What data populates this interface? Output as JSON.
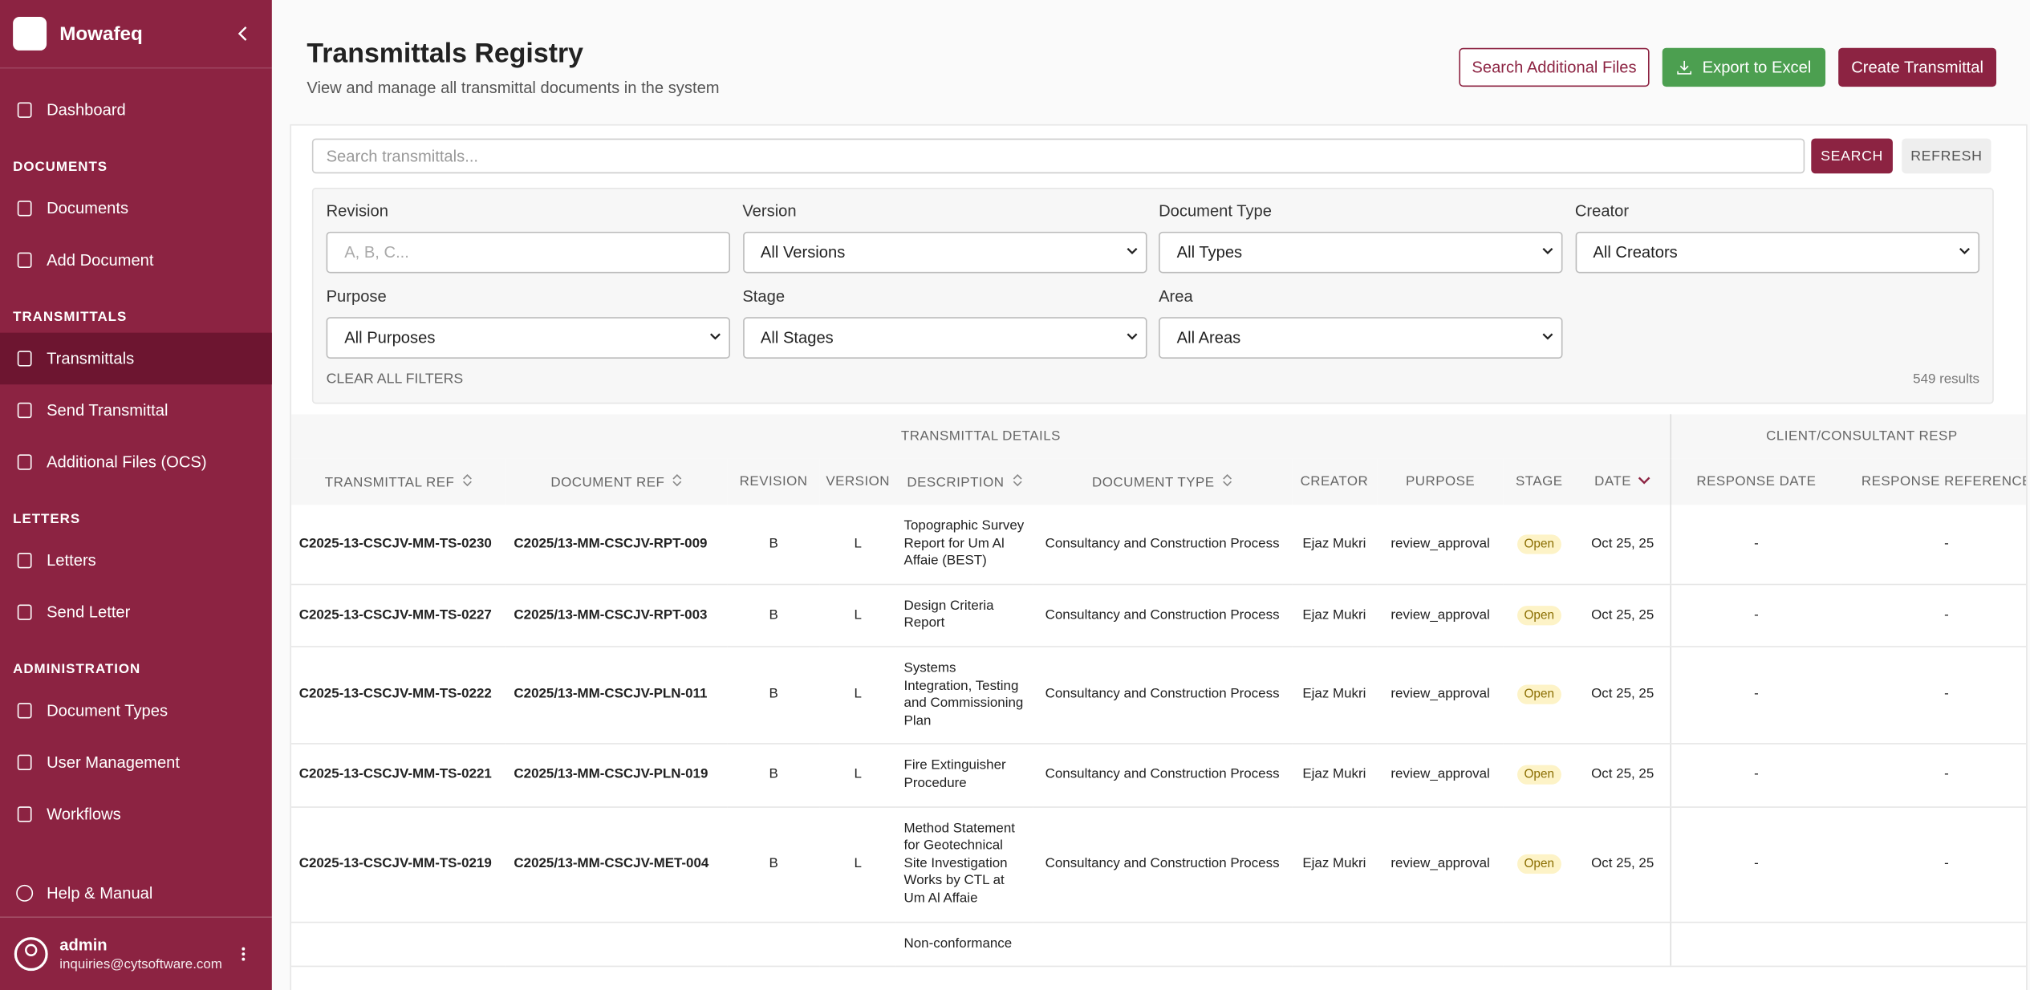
{
  "sidebar": {
    "brand": "Mowafeq",
    "sections": [
      {
        "items": [
          "Dashboard"
        ]
      },
      {
        "label": "DOCUMENTS",
        "items": [
          "Documents",
          "Add Document"
        ]
      },
      {
        "label": "TRANSMITTALS",
        "items": [
          "Transmittals",
          "Send Transmittal",
          "Additional Files (OCS)"
        ],
        "active": 0
      },
      {
        "label": "LETTERS",
        "items": [
          "Letters",
          "Send Letter"
        ]
      },
      {
        "label": "ADMINISTRATION",
        "items": [
          "Document Types",
          "User Management",
          "Workflows"
        ]
      }
    ],
    "help": "Help & Manual",
    "user": {
      "name": "admin",
      "email": "inquiries@cytsoftware.com"
    }
  },
  "header": {
    "title": "Transmittals Registry",
    "subtitle": "View and manage all transmittal documents in the system",
    "buttons": [
      "Search Additional Files",
      "Export to Excel",
      "Create Transmittal"
    ]
  },
  "search": {
    "placeholder": "Search transmittals...",
    "search_button": "SEARCH",
    "refresh_button": "REFRESH"
  },
  "filters": {
    "fields": [
      {
        "label": "Revision",
        "placeholder": "A, B, C..."
      },
      {
        "label": "Version",
        "value": "All Versions"
      },
      {
        "label": "Document Type",
        "value": "All Types"
      },
      {
        "label": "Creator",
        "value": "All Creators"
      },
      {
        "label": "Purpose",
        "value": "All Purposes"
      },
      {
        "label": "Stage",
        "value": "All Stages"
      },
      {
        "label": "Area",
        "value": "All Areas"
      }
    ],
    "clear": "CLEAR ALL FILTERS",
    "results": "549 results"
  },
  "table": {
    "groups": [
      "TRANSMITTAL DETAILS",
      "CLIENT/CONSULTANT RESP"
    ],
    "columns": [
      {
        "label": "TRANSMITTAL REF",
        "sortable": true
      },
      {
        "label": "DOCUMENT REF",
        "sortable": true
      },
      {
        "label": "REVISION"
      },
      {
        "label": "VERSION"
      },
      {
        "label": "DESCRIPTION",
        "sortable": true
      },
      {
        "label": "DOCUMENT TYPE",
        "sortable": true
      },
      {
        "label": "CREATOR"
      },
      {
        "label": "PURPOSE"
      },
      {
        "label": "STAGE"
      },
      {
        "label": "DATE",
        "sorted": true
      },
      {
        "label": "RESPONSE DATE"
      },
      {
        "label": "RESPONSE REFERENCE"
      }
    ],
    "rows": [
      [
        "C2025-13-CSCJV-MM-TS-0230",
        "C2025/13-MM-CSCJV-RPT-009",
        "B",
        "L",
        "Topographic Survey Report for Um Al Affaie (BEST)",
        "Consultancy and Construction Process",
        "Ejaz Mukri",
        "review_approval",
        "Open",
        "Oct 25, 25",
        "-",
        "-"
      ],
      [
        "C2025-13-CSCJV-MM-TS-0227",
        "C2025/13-MM-CSCJV-RPT-003",
        "B",
        "L",
        "Design Criteria Report",
        "Consultancy and Construction Process",
        "Ejaz Mukri",
        "review_approval",
        "Open",
        "Oct 25, 25",
        "-",
        "-"
      ],
      [
        "C2025-13-CSCJV-MM-TS-0222",
        "C2025/13-MM-CSCJV-PLN-011",
        "B",
        "L",
        "Systems Integration, Testing and Commissioning Plan",
        "Consultancy and Construction Process",
        "Ejaz Mukri",
        "review_approval",
        "Open",
        "Oct 25, 25",
        "-",
        "-"
      ],
      [
        "C2025-13-CSCJV-MM-TS-0221",
        "C2025/13-MM-CSCJV-PLN-019",
        "B",
        "L",
        "Fire Extinguisher Procedure",
        "Consultancy and Construction Process",
        "Ejaz Mukri",
        "review_approval",
        "Open",
        "Oct 25, 25",
        "-",
        "-"
      ],
      [
        "C2025-13-CSCJV-MM-TS-0219",
        "C2025/13-MM-CSCJV-MET-004",
        "B",
        "L",
        "Method Statement for Geotechnical Site Investigation Works by CTL at Um Al Affaie",
        "Consultancy and Construction Process",
        "Ejaz Mukri",
        "review_approval",
        "Open",
        "Oct 25, 25",
        "-",
        "-"
      ],
      [
        null,
        null,
        null,
        null,
        "Non-conformance",
        null,
        null,
        null,
        null,
        null,
        null,
        null
      ]
    ]
  }
}
